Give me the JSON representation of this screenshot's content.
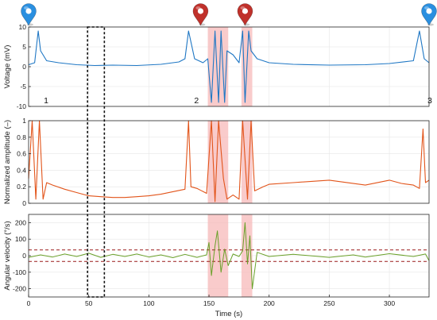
{
  "colors": {
    "voltage": "#1f77c4",
    "amplitude": "#e2541a",
    "angular": "#6aa12a",
    "highlight": "#f7b9b9",
    "threshold": "#9a1b1b",
    "pin_blue": "#2a8fe0",
    "pin_red": "#c0312b",
    "grid": "#e6e6e6"
  },
  "chart_data": [
    {
      "type": "line",
      "ylabel": "Voltage (mV)",
      "ylim": [
        -10,
        10
      ],
      "yticks": [
        -10,
        -5,
        0,
        5,
        10
      ],
      "grid": true,
      "series": [
        {
          "x": [
            0,
            5,
            8,
            10,
            15,
            25,
            40,
            55,
            70,
            90,
            110,
            125,
            130,
            133,
            138,
            145,
            149,
            152,
            155,
            158,
            160,
            163,
            165,
            170,
            175,
            178,
            180,
            183,
            185,
            190,
            200,
            220,
            250,
            280,
            300,
            320,
            325,
            329,
            333
          ],
          "y": [
            0.5,
            1,
            9,
            4,
            1.5,
            1,
            0.5,
            0.3,
            0.4,
            0.3,
            0.6,
            1.2,
            2,
            9,
            2,
            1,
            2,
            -9,
            9,
            -9,
            9,
            -9,
            4,
            3,
            1,
            9,
            -9,
            9,
            4,
            2,
            1,
            0.6,
            0.4,
            0.5,
            0.8,
            1.5,
            9,
            2,
            1
          ]
        }
      ],
      "markers": [
        {
          "label": "1",
          "x": 10
        },
        {
          "label": "2",
          "x": 135
        },
        {
          "label": "3",
          "x": 329
        }
      ]
    },
    {
      "type": "line",
      "ylabel": "Normalized amplitude (–)",
      "ylim": [
        0,
        1
      ],
      "yticks": [
        0,
        0.2,
        0.4,
        0.6,
        0.8,
        1
      ],
      "grid": true,
      "series": [
        {
          "x": [
            0,
            3,
            6,
            9,
            12,
            15,
            20,
            30,
            40,
            50,
            60,
            70,
            80,
            90,
            100,
            110,
            120,
            130,
            133,
            135,
            140,
            148,
            152,
            155,
            158,
            162,
            165,
            170,
            175,
            178,
            182,
            185,
            188,
            195,
            200,
            220,
            250,
            280,
            300,
            310,
            320,
            325,
            328,
            330,
            333
          ],
          "y": [
            0.3,
            1,
            0.05,
            1,
            0.05,
            0.25,
            0.22,
            0.17,
            0.13,
            0.09,
            0.08,
            0.07,
            0.07,
            0.08,
            0.09,
            0.11,
            0.14,
            0.17,
            1,
            0.2,
            0.18,
            0.12,
            1,
            0.02,
            1,
            0.3,
            0.05,
            0.1,
            0.05,
            1,
            0.05,
            1,
            0.15,
            0.2,
            0.23,
            0.25,
            0.28,
            0.22,
            0.28,
            0.24,
            0.22,
            0.18,
            0.9,
            0.25,
            0.28
          ]
        }
      ]
    },
    {
      "type": "line",
      "xlabel": "Time (s)",
      "ylabel": "Angular velocity (°/s)",
      "xlim": [
        0,
        333
      ],
      "xticks": [
        0,
        50,
        100,
        150,
        200,
        250,
        300
      ],
      "ylim": [
        -250,
        250
      ],
      "yticks": [
        -200,
        -100,
        0,
        100,
        200
      ],
      "grid": true,
      "thresholds": [
        35,
        -35
      ],
      "series": [
        {
          "x": [
            0,
            10,
            20,
            30,
            40,
            50,
            60,
            70,
            80,
            90,
            100,
            110,
            120,
            130,
            140,
            148,
            150,
            152,
            155,
            157,
            160,
            163,
            166,
            170,
            175,
            178,
            180,
            182,
            184,
            186,
            190,
            200,
            220,
            250,
            270,
            280,
            300,
            320,
            330,
            333
          ],
          "y": [
            -10,
            5,
            -8,
            10,
            -5,
            15,
            -10,
            8,
            -5,
            10,
            -8,
            5,
            -12,
            8,
            -10,
            5,
            80,
            -120,
            60,
            150,
            -100,
            40,
            -60,
            10,
            -5,
            30,
            200,
            -50,
            120,
            -200,
            20,
            -5,
            8,
            -10,
            5,
            -8,
            12,
            -5,
            10,
            -30
          ]
        }
      ]
    }
  ],
  "highlight_regions": [
    {
      "x0": 149,
      "x1": 166
    },
    {
      "x0": 177,
      "x1": 186
    }
  ],
  "window_box": {
    "x0": 49,
    "x1": 63
  },
  "pins": [
    {
      "kind": "blue",
      "x": 0
    },
    {
      "kind": "red",
      "x": 143
    },
    {
      "kind": "red",
      "x": 180
    },
    {
      "kind": "blue",
      "x": 333
    }
  ]
}
